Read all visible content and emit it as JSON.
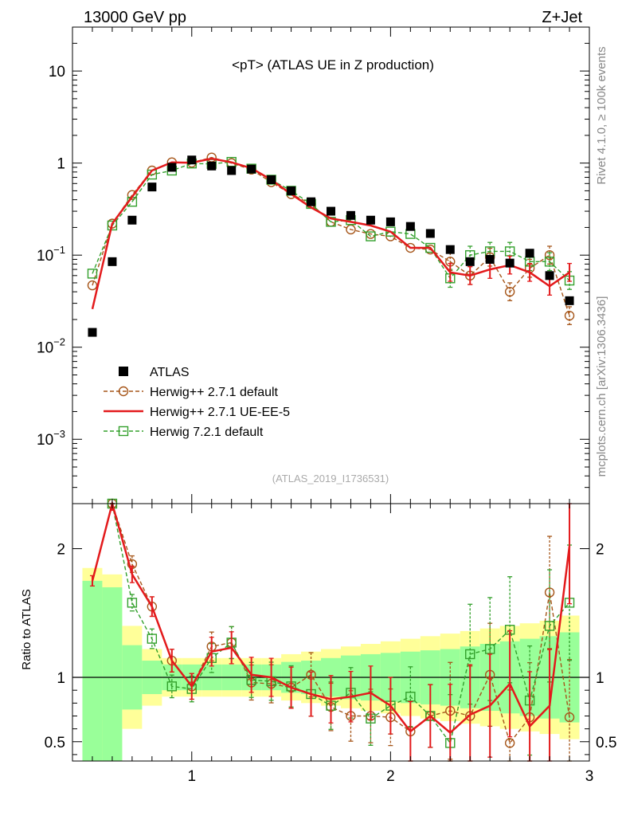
{
  "header": {
    "left": "13000 GeV pp",
    "right": "Z+Jet"
  },
  "side_labels": {
    "rivet": "Rivet 4.1.0, ≥ 100k events",
    "mcplots": "mcplots.cern.ch [arXiv:1306.3436]"
  },
  "chart_data": {
    "type": "scatter",
    "title": "<pT> (ATLAS UE in Z production)",
    "analysis": "(ATLAS_2019_I1736531)",
    "main_panel": {
      "yscale": "log",
      "ylim": [
        0.0002,
        30
      ],
      "y_ticks": [
        {
          "value": 0.001,
          "base": "10",
          "exp": "−3"
        },
        {
          "value": 0.01,
          "base": "10",
          "exp": "−2"
        },
        {
          "value": 0.1,
          "base": "10",
          "exp": "−1"
        },
        {
          "value": 1,
          "base": "1",
          "exp": ""
        },
        {
          "value": 10,
          "base": "10",
          "exp": ""
        }
      ]
    },
    "ratio_panel": {
      "ylabel": "Ratio to ATLAS",
      "ylim": [
        0.35,
        2.35
      ],
      "y_ticks": [
        "0.5",
        "1",
        "2"
      ],
      "y_tick_values": [
        0.5,
        1,
        2
      ]
    },
    "x_axis": {
      "xlim": [
        0.4,
        3.0
      ],
      "ticks": [
        "1",
        "2",
        "3"
      ],
      "tick_values": [
        1,
        2,
        3
      ]
    },
    "x": [
      0.5,
      0.6,
      0.7,
      0.8,
      0.9,
      1.0,
      1.1,
      1.2,
      1.3,
      1.4,
      1.5,
      1.6,
      1.7,
      1.8,
      1.9,
      2.0,
      2.1,
      2.2,
      2.3,
      2.4,
      2.5,
      2.6,
      2.7,
      2.8,
      2.9
    ],
    "series": [
      {
        "name": "ATLAS",
        "color": "#000000",
        "style": "data",
        "values": [
          0.0145,
          0.085,
          0.24,
          0.55,
          0.9,
          1.08,
          0.93,
          0.83,
          0.86,
          0.66,
          0.5,
          0.38,
          0.3,
          0.27,
          0.24,
          0.23,
          0.205,
          0.172,
          0.115,
          0.085,
          0.09,
          0.082,
          0.105,
          0.06,
          0.032
        ],
        "ratio": [
          1,
          1,
          1,
          1,
          1,
          1,
          1,
          1,
          1,
          1,
          1,
          1,
          1,
          1,
          1,
          1,
          1,
          1,
          1,
          1,
          1,
          1,
          1,
          1,
          1
        ]
      },
      {
        "name": "Herwig++ 2.7.1 default",
        "color": "#a6561a",
        "style": "dashed-circle",
        "values": [
          0.047,
          0.22,
          0.45,
          0.83,
          1.02,
          1.01,
          1.15,
          1.0,
          0.85,
          0.62,
          0.46,
          0.36,
          0.23,
          0.19,
          0.17,
          0.16,
          0.12,
          0.115,
          0.085,
          0.06,
          0.095,
          0.04,
          0.072,
          0.1,
          0.022
        ],
        "ratio": [
          null,
          2.35,
          1.88,
          1.55,
          1.13,
          0.93,
          1.24,
          1.27,
          0.96,
          0.95,
          0.92,
          1.02,
          0.77,
          0.7,
          0.7,
          0.69,
          0.58,
          0.7,
          0.74,
          0.7,
          1.02,
          0.49,
          0.69,
          1.66,
          0.69
        ]
      },
      {
        "name": "Herwig++ 2.7.1 UE-EE-5",
        "color": "#e31a1c",
        "style": "solid-line",
        "values": [
          0.026,
          0.22,
          0.43,
          0.83,
          1.02,
          1.01,
          1.12,
          1.02,
          0.88,
          0.66,
          0.46,
          0.33,
          0.25,
          0.23,
          0.21,
          0.18,
          0.12,
          0.12,
          0.065,
          0.06,
          0.07,
          0.078,
          0.065,
          0.046,
          0.065
        ],
        "ratio": [
          1.75,
          2.35,
          1.8,
          1.55,
          1.13,
          0.93,
          1.2,
          1.23,
          1.02,
          1.0,
          0.92,
          0.87,
          0.83,
          0.85,
          0.88,
          0.78,
          0.58,
          0.7,
          0.57,
          0.71,
          0.78,
          0.95,
          0.62,
          0.78,
          2.02
        ]
      },
      {
        "name": "Herwig 7.2.1 default",
        "color": "#33a02c",
        "style": "dashed-square",
        "values": [
          0.063,
          0.21,
          0.38,
          0.75,
          0.83,
          0.99,
          0.98,
          1.03,
          0.87,
          0.66,
          0.5,
          0.36,
          0.23,
          0.24,
          0.16,
          0.18,
          0.17,
          0.12,
          0.056,
          0.1,
          0.11,
          0.11,
          0.085,
          0.085,
          0.053
        ],
        "ratio": [
          null,
          2.4,
          1.58,
          1.3,
          0.93,
          0.91,
          1.15,
          1.27,
          0.98,
          0.97,
          0.93,
          0.87,
          0.78,
          0.88,
          0.68,
          0.78,
          0.85,
          0.7,
          0.49,
          1.18,
          1.22,
          1.37,
          0.82,
          1.4,
          1.58
        ]
      }
    ],
    "uncertainty_bands": {
      "inner_color": "#99ff99",
      "outer_color": "#ffff99",
      "inner": [
        0.75,
        0.7,
        0.25,
        0.13,
        0.1,
        0.1,
        0.1,
        0.1,
        0.1,
        0.1,
        0.12,
        0.13,
        0.15,
        0.17,
        0.18,
        0.19,
        0.2,
        0.21,
        0.22,
        0.24,
        0.26,
        0.28,
        0.3,
        0.32,
        0.35
      ],
      "outer": [
        0.85,
        0.8,
        0.4,
        0.22,
        0.15,
        0.15,
        0.15,
        0.15,
        0.15,
        0.15,
        0.18,
        0.2,
        0.22,
        0.24,
        0.26,
        0.28,
        0.3,
        0.32,
        0.34,
        0.36,
        0.38,
        0.4,
        0.42,
        0.44,
        0.48
      ]
    }
  }
}
